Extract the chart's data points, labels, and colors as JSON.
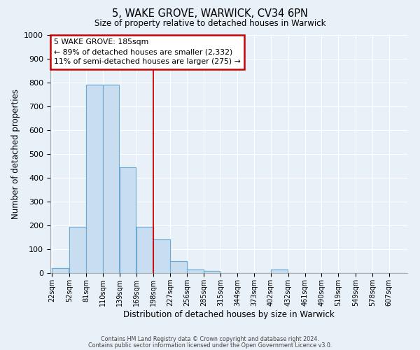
{
  "title": "5, WAKE GROVE, WARWICK, CV34 6PN",
  "subtitle": "Size of property relative to detached houses in Warwick",
  "xlabel": "Distribution of detached houses by size in Warwick",
  "ylabel": "Number of detached properties",
  "bin_labels": [
    "22sqm",
    "52sqm",
    "81sqm",
    "110sqm",
    "139sqm",
    "169sqm",
    "198sqm",
    "227sqm",
    "256sqm",
    "285sqm",
    "315sqm",
    "344sqm",
    "373sqm",
    "402sqm",
    "432sqm",
    "461sqm",
    "490sqm",
    "519sqm",
    "549sqm",
    "578sqm",
    "607sqm"
  ],
  "bar_values": [
    20,
    195,
    790,
    790,
    445,
    195,
    140,
    50,
    15,
    10,
    0,
    0,
    0,
    15,
    0,
    0,
    0,
    0,
    0,
    0,
    0
  ],
  "bar_color": "#c8ddf0",
  "bar_edge_color": "#6aaad4",
  "background_color": "#e8f0f8",
  "grid_color": "#ffffff",
  "annotation_text_line1": "5 WAKE GROVE: 185sqm",
  "annotation_text_line2": "← 89% of detached houses are smaller (2,332)",
  "annotation_text_line3": "11% of semi-detached houses are larger (275) →",
  "annotation_box_facecolor": "#ffffff",
  "annotation_box_edgecolor": "#cc0000",
  "vline_color": "#cc0000",
  "ylim": [
    0,
    1000
  ],
  "yticks": [
    0,
    100,
    200,
    300,
    400,
    500,
    600,
    700,
    800,
    900,
    1000
  ],
  "bin_edges": [
    22,
    52,
    81,
    110,
    139,
    169,
    198,
    227,
    256,
    285,
    315,
    344,
    373,
    402,
    432,
    461,
    490,
    519,
    549,
    578,
    607
  ],
  "bin_width": 29,
  "vline_x": 198,
  "footer_line1": "Contains HM Land Registry data © Crown copyright and database right 2024.",
  "footer_line2": "Contains public sector information licensed under the Open Government Licence v3.0."
}
